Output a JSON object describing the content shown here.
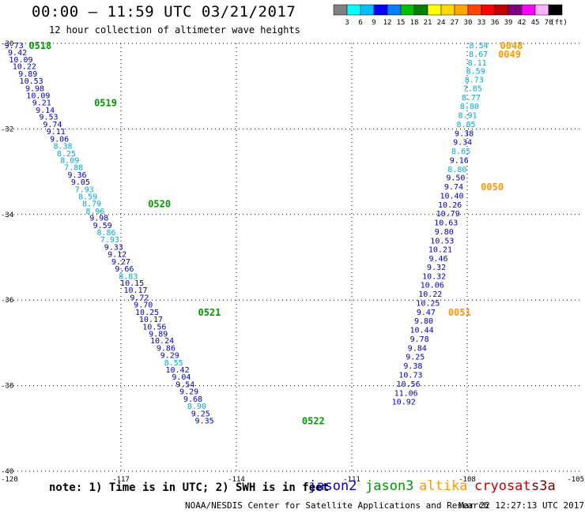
{
  "title": "00:00 — 11:59 UTC 03/21/2017",
  "subtitle": "12 hour collection of altimeter wave heights",
  "colorbar": {
    "colors": [
      "#808080",
      "#00ffff",
      "#00bfff",
      "#0000ff",
      "#0080ff",
      "#00c000",
      "#008000",
      "#ffff00",
      "#ffd700",
      "#ffa500",
      "#ff4500",
      "#ff0000",
      "#c00000",
      "#800080",
      "#ff00ff",
      "#ffb0ff",
      "#000000"
    ],
    "labels": [
      "3",
      "6",
      "9",
      "12",
      "15",
      "18",
      "21",
      "24",
      "27",
      "30",
      "33",
      "36",
      "39",
      "42",
      "45",
      "70"
    ],
    "unit": "(ft)"
  },
  "note": "note: 1) Time is in UTC; 2) SWH is in feet",
  "missions": [
    {
      "name": "jason2",
      "color": "#0000cc"
    },
    {
      "name": "jason3",
      "color": "#009900"
    },
    {
      "name": "altika",
      "color": "#ff9900"
    },
    {
      "name": "cryosat",
      "color": "#cc0000"
    },
    {
      "name": "s3a",
      "color": "#800000"
    }
  ],
  "credit": "NOAA/NESDIS Center for Satellite Applications and Research",
  "timestamp": "Mar 22 12:27:13 UTC 2017",
  "chart_data": {
    "type": "scatter",
    "xlim": [
      -120,
      -105
    ],
    "ylim": [
      -40,
      -30
    ],
    "x_ticks": [
      -120,
      -117,
      -114,
      -111,
      -108,
      -105
    ],
    "x_tick_labels": [
      "-120",
      "-117",
      "-114",
      "-111",
      "-108",
      "-105"
    ],
    "y_ticks": [
      -30,
      -32,
      -34,
      -36,
      -38,
      -40
    ],
    "y_tick_labels": [
      "-30",
      "-32",
      "-34",
      "-36",
      "-38",
      "-40"
    ],
    "grid": "dotted",
    "tracks": [
      {
        "mission": "jason3",
        "points": [
          {
            "lon": -119.78,
            "lat": -30.04,
            "swh": "9.73",
            "color": "#0000cc"
          },
          {
            "lon": -119.69,
            "lat": -30.2,
            "swh": "9.42",
            "color": "#0000cc"
          },
          {
            "lon": -119.6,
            "lat": -30.37,
            "swh": "10.09",
            "color": "#0000cc"
          },
          {
            "lon": -119.51,
            "lat": -30.53,
            "swh": "10.22",
            "color": "#0000cc"
          },
          {
            "lon": -119.42,
            "lat": -30.7,
            "swh": "9.89",
            "color": "#0000cc"
          },
          {
            "lon": -119.33,
            "lat": -30.87,
            "swh": "10.53",
            "color": "#0000cc"
          },
          {
            "lon": -119.24,
            "lat": -31.04,
            "swh": "9.98",
            "color": "#0000cc"
          },
          {
            "lon": -119.15,
            "lat": -31.21,
            "swh": "10.09",
            "color": "#0000cc"
          },
          {
            "lon": -119.06,
            "lat": -31.37,
            "swh": "9.21",
            "color": "#0000cc"
          },
          {
            "lon": -118.97,
            "lat": -31.55,
            "swh": "9.14",
            "color": "#0000cc"
          },
          {
            "lon": -118.88,
            "lat": -31.71,
            "swh": "9.53",
            "color": "#0000cc"
          },
          {
            "lon": -118.78,
            "lat": -31.88,
            "swh": "9.74",
            "color": "#0000cc"
          },
          {
            "lon": -118.69,
            "lat": -32.05,
            "swh": "9.11",
            "color": "#0000cc"
          },
          {
            "lon": -118.6,
            "lat": -32.22,
            "swh": "9.06",
            "color": "#0000cc"
          },
          {
            "lon": -118.51,
            "lat": -32.39,
            "swh": "8.38",
            "color": "#00aadd"
          },
          {
            "lon": -118.42,
            "lat": -32.56,
            "swh": "8.25",
            "color": "#00aadd"
          },
          {
            "lon": -118.33,
            "lat": -32.72,
            "swh": "8.09",
            "color": "#00aadd"
          },
          {
            "lon": -118.23,
            "lat": -32.89,
            "swh": "7.88",
            "color": "#00aadd"
          },
          {
            "lon": -118.14,
            "lat": -33.06,
            "swh": "9.36",
            "color": "#0000cc"
          },
          {
            "lon": -118.05,
            "lat": -33.23,
            "swh": "9.05",
            "color": "#0000cc"
          },
          {
            "lon": -117.95,
            "lat": -33.4,
            "swh": "7.93",
            "color": "#00aadd"
          },
          {
            "lon": -117.86,
            "lat": -33.57,
            "swh": "8.59",
            "color": "#00aadd"
          },
          {
            "lon": -117.76,
            "lat": -33.74,
            "swh": "8.79",
            "color": "#00aadd"
          },
          {
            "lon": -117.67,
            "lat": -33.91,
            "swh": "8.96",
            "color": "#00aadd"
          },
          {
            "lon": -117.57,
            "lat": -34.07,
            "swh": "9.98",
            "color": "#0000cc"
          },
          {
            "lon": -117.48,
            "lat": -34.24,
            "swh": "9.59",
            "color": "#0000cc"
          },
          {
            "lon": -117.38,
            "lat": -34.41,
            "swh": "8.86",
            "color": "#00aadd"
          },
          {
            "lon": -117.29,
            "lat": -34.58,
            "swh": "7.93",
            "color": "#00aadd"
          },
          {
            "lon": -117.19,
            "lat": -34.75,
            "swh": "9.33",
            "color": "#0000cc"
          },
          {
            "lon": -117.1,
            "lat": -34.92,
            "swh": "9.12",
            "color": "#0000cc"
          },
          {
            "lon": -117.0,
            "lat": -35.09,
            "swh": "9.27",
            "color": "#0000cc"
          },
          {
            "lon": -116.91,
            "lat": -35.26,
            "swh": "9.66",
            "color": "#0000cc"
          },
          {
            "lon": -116.81,
            "lat": -35.43,
            "swh": "8.83",
            "color": "#00aadd"
          },
          {
            "lon": -116.71,
            "lat": -35.59,
            "swh": "10.15",
            "color": "#0000cc"
          },
          {
            "lon": -116.62,
            "lat": -35.76,
            "swh": "10.17",
            "color": "#0000cc"
          },
          {
            "lon": -116.52,
            "lat": -35.93,
            "swh": "9.72",
            "color": "#0000cc"
          },
          {
            "lon": -116.42,
            "lat": -36.1,
            "swh": "9.70",
            "color": "#0000cc"
          },
          {
            "lon": -116.32,
            "lat": -36.27,
            "swh": "10.25",
            "color": "#0000cc"
          },
          {
            "lon": -116.22,
            "lat": -36.44,
            "swh": "10.17",
            "color": "#0000cc"
          },
          {
            "lon": -116.13,
            "lat": -36.61,
            "swh": "10.56",
            "color": "#0000cc"
          },
          {
            "lon": -116.03,
            "lat": -36.78,
            "swh": "9.89",
            "color": "#0000cc"
          },
          {
            "lon": -115.93,
            "lat": -36.94,
            "swh": "10.24",
            "color": "#0000cc"
          },
          {
            "lon": -115.83,
            "lat": -37.11,
            "swh": "9.86",
            "color": "#0000cc"
          },
          {
            "lon": -115.73,
            "lat": -37.28,
            "swh": "9.29",
            "color": "#0000cc"
          },
          {
            "lon": -115.63,
            "lat": -37.45,
            "swh": "8.55",
            "color": "#00aadd"
          },
          {
            "lon": -115.53,
            "lat": -37.62,
            "swh": "10.42",
            "color": "#0000cc"
          },
          {
            "lon": -115.43,
            "lat": -37.79,
            "swh": "9.04",
            "color": "#0000cc"
          },
          {
            "lon": -115.33,
            "lat": -37.96,
            "swh": "9.54",
            "color": "#0000cc"
          },
          {
            "lon": -115.23,
            "lat": -38.13,
            "swh": "9.29",
            "color": "#0000cc"
          },
          {
            "lon": -115.13,
            "lat": -38.3,
            "swh": "9.68",
            "color": "#0000cc"
          },
          {
            "lon": -115.03,
            "lat": -38.47,
            "swh": "8.90",
            "color": "#00aadd"
          },
          {
            "lon": -114.93,
            "lat": -38.64,
            "swh": "9.25",
            "color": "#0000cc"
          },
          {
            "lon": -114.83,
            "lat": -38.81,
            "swh": "9.35",
            "color": "#0000cc"
          }
        ]
      },
      {
        "mission": "altika",
        "points": [
          {
            "lon": -107.7,
            "lat": -30.04,
            "swh": "8.54",
            "color": "#00aadd"
          },
          {
            "lon": -107.71,
            "lat": -30.24,
            "swh": "8.67",
            "color": "#00aadd"
          },
          {
            "lon": -107.74,
            "lat": -30.44,
            "swh": "8.11",
            "color": "#00aadd"
          },
          {
            "lon": -107.78,
            "lat": -30.64,
            "swh": "8.59",
            "color": "#00aadd"
          },
          {
            "lon": -107.82,
            "lat": -30.84,
            "swh": "8.73",
            "color": "#00aadd"
          },
          {
            "lon": -107.86,
            "lat": -31.04,
            "swh": "7.85",
            "color": "#00aadd"
          },
          {
            "lon": -107.9,
            "lat": -31.25,
            "swh": "8.77",
            "color": "#00aadd"
          },
          {
            "lon": -107.94,
            "lat": -31.46,
            "swh": "8.80",
            "color": "#00aadd"
          },
          {
            "lon": -107.99,
            "lat": -31.67,
            "swh": "8.91",
            "color": "#00aadd"
          },
          {
            "lon": -108.03,
            "lat": -31.88,
            "swh": "8.85",
            "color": "#00aadd"
          },
          {
            "lon": -108.08,
            "lat": -32.09,
            "swh": "9.38",
            "color": "#0000cc"
          },
          {
            "lon": -108.12,
            "lat": -32.3,
            "swh": "9.34",
            "color": "#0000cc"
          },
          {
            "lon": -108.16,
            "lat": -32.51,
            "swh": "8.65",
            "color": "#00aadd"
          },
          {
            "lon": -108.21,
            "lat": -32.72,
            "swh": "9.16",
            "color": "#0000cc"
          },
          {
            "lon": -108.26,
            "lat": -32.93,
            "swh": "8.80",
            "color": "#00aadd"
          },
          {
            "lon": -108.3,
            "lat": -33.13,
            "swh": "9.50",
            "color": "#0000cc"
          },
          {
            "lon": -108.35,
            "lat": -33.34,
            "swh": "9.74",
            "color": "#0000cc"
          },
          {
            "lon": -108.4,
            "lat": -33.55,
            "swh": "10.40",
            "color": "#0000cc"
          },
          {
            "lon": -108.45,
            "lat": -33.76,
            "swh": "10.26",
            "color": "#0000cc"
          },
          {
            "lon": -108.5,
            "lat": -33.97,
            "swh": "10.79",
            "color": "#0000cc"
          },
          {
            "lon": -108.55,
            "lat": -34.18,
            "swh": "10.63",
            "color": "#0000cc"
          },
          {
            "lon": -108.6,
            "lat": -34.39,
            "swh": "9.80",
            "color": "#0000cc"
          },
          {
            "lon": -108.65,
            "lat": -34.6,
            "swh": "10.53",
            "color": "#0000cc"
          },
          {
            "lon": -108.7,
            "lat": -34.81,
            "swh": "10.21",
            "color": "#0000cc"
          },
          {
            "lon": -108.75,
            "lat": -35.02,
            "swh": "9.46",
            "color": "#0000cc"
          },
          {
            "lon": -108.8,
            "lat": -35.22,
            "swh": "9.32",
            "color": "#0000cc"
          },
          {
            "lon": -108.86,
            "lat": -35.43,
            "swh": "10.32",
            "color": "#0000cc"
          },
          {
            "lon": -108.91,
            "lat": -35.64,
            "swh": "10.06",
            "color": "#0000cc"
          },
          {
            "lon": -108.96,
            "lat": -35.85,
            "swh": "10.22",
            "color": "#0000cc"
          },
          {
            "lon": -109.02,
            "lat": -36.06,
            "swh": "10.25",
            "color": "#0000cc"
          },
          {
            "lon": -109.07,
            "lat": -36.27,
            "swh": "9.47",
            "color": "#0000cc"
          },
          {
            "lon": -109.13,
            "lat": -36.48,
            "swh": "9.80",
            "color": "#0000cc"
          },
          {
            "lon": -109.18,
            "lat": -36.69,
            "swh": "10.44",
            "color": "#0000cc"
          },
          {
            "lon": -109.24,
            "lat": -36.9,
            "swh": "9.78",
            "color": "#0000cc"
          },
          {
            "lon": -109.3,
            "lat": -37.11,
            "swh": "9.84",
            "color": "#0000cc"
          },
          {
            "lon": -109.35,
            "lat": -37.32,
            "swh": "9.25",
            "color": "#0000cc"
          },
          {
            "lon": -109.41,
            "lat": -37.53,
            "swh": "9.38",
            "color": "#0000cc"
          },
          {
            "lon": -109.47,
            "lat": -37.74,
            "swh": "10.73",
            "color": "#0000cc"
          },
          {
            "lon": -109.53,
            "lat": -37.95,
            "swh": "10.56",
            "color": "#0000cc"
          },
          {
            "lon": -109.59,
            "lat": -38.16,
            "swh": "11.06",
            "color": "#0000cc"
          },
          {
            "lon": -109.65,
            "lat": -38.37,
            "swh": "10.92",
            "color": "#0000cc"
          }
        ]
      }
    ],
    "time_labels": [
      {
        "text": "0518",
        "lon": -119.1,
        "lat": -30.04,
        "color": "#009900"
      },
      {
        "text": "0519",
        "lon": -117.4,
        "lat": -31.37,
        "color": "#009900"
      },
      {
        "text": "0520",
        "lon": -116.0,
        "lat": -33.74,
        "color": "#009900"
      },
      {
        "text": "0521",
        "lon": -114.7,
        "lat": -36.27,
        "color": "#009900"
      },
      {
        "text": "0522",
        "lon": -112.0,
        "lat": -38.81,
        "color": "#009900"
      },
      {
        "text": "0048",
        "lon": -106.85,
        "lat": -30.04,
        "color": "#ff9900"
      },
      {
        "text": "0049",
        "lon": -106.9,
        "lat": -30.24,
        "color": "#ff9900"
      },
      {
        "text": "0050",
        "lon": -107.35,
        "lat": -33.34,
        "color": "#ff9900"
      },
      {
        "text": "0051",
        "lon": -108.2,
        "lat": -36.27,
        "color": "#ff9900"
      }
    ]
  }
}
